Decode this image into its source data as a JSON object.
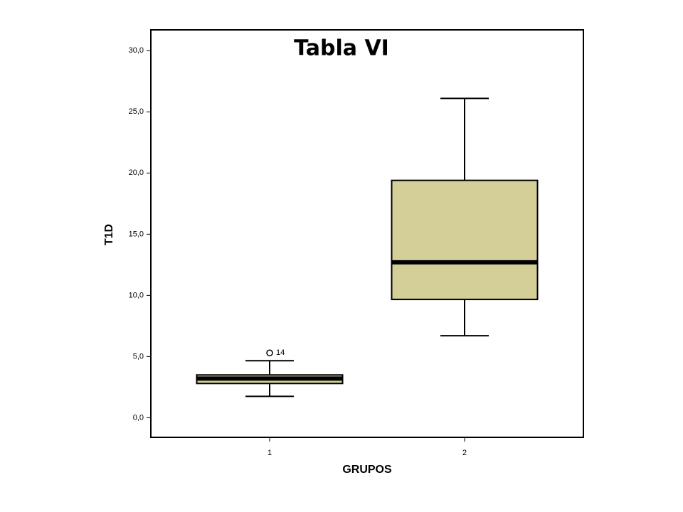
{
  "chart_data": {
    "type": "box",
    "title": "Tabla VI",
    "x_label": "GRUPOS",
    "y_label": "T1D",
    "categories": [
      "1",
      "2"
    ],
    "boxes": [
      {
        "whislo": 1.75,
        "q1": 2.8,
        "med": 3.2,
        "q3": 3.5,
        "whishi": 4.66,
        "outliers": [
          {
            "value": 5.3,
            "case": "14"
          }
        ]
      },
      {
        "whislo": 6.7,
        "q1": 9.67,
        "med": 12.7,
        "q3": 19.4,
        "whishi": 26.1,
        "outliers": []
      }
    ],
    "color": "#d4cf98",
    "ylim": [
      -1.6,
      31.7
    ],
    "yticks": [
      {
        "value": 0,
        "label": "0,0"
      },
      {
        "value": 5,
        "label": "5,0"
      },
      {
        "value": 10,
        "label": "10,0"
      },
      {
        "value": 15,
        "label": "15,0"
      },
      {
        "value": 20,
        "label": "20,0"
      },
      {
        "value": 25,
        "label": "25,0"
      },
      {
        "value": 30,
        "label": "30,0"
      }
    ]
  }
}
